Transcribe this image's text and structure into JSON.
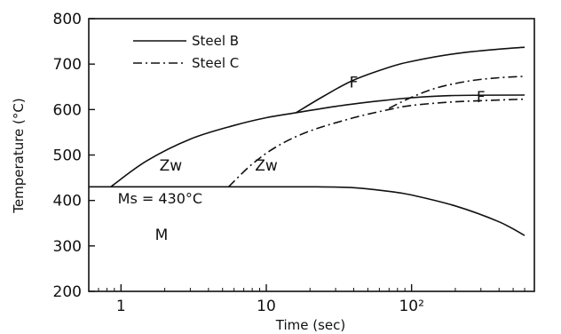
{
  "chart_data": {
    "type": "line",
    "xlabel": "Time (sec)",
    "ylabel": "Temperature (°C)",
    "xscale": "log",
    "xlim": [
      0.6,
      700
    ],
    "ylim": [
      200,
      800
    ],
    "grid": false,
    "x_ticks": [
      {
        "value": 1,
        "label": "1"
      },
      {
        "value": 10,
        "label": "10"
      },
      {
        "value": 100,
        "label": "10²"
      }
    ],
    "y_ticks": [
      200,
      300,
      400,
      500,
      600,
      700,
      800
    ],
    "legend": {
      "placement": "top-left",
      "entries": [
        {
          "name": "Steel B",
          "style": "solid"
        },
        {
          "name": "Steel C",
          "style": "dash-dot"
        }
      ]
    },
    "series": [
      {
        "name": "Steel B",
        "style": "solid",
        "part": "Zw-start",
        "points": [
          [
            0.85,
            430
          ],
          [
            1.5,
            487
          ],
          [
            3,
            535
          ],
          [
            6,
            565
          ],
          [
            10,
            582
          ],
          [
            16,
            593
          ],
          [
            30,
            607
          ],
          [
            60,
            619
          ],
          [
            100,
            626
          ],
          [
            200,
            631
          ],
          [
            600,
            632
          ]
        ]
      },
      {
        "name": "Steel B",
        "style": "solid",
        "part": "F-start",
        "points": [
          [
            16,
            593
          ],
          [
            25,
            630
          ],
          [
            40,
            665
          ],
          [
            70,
            693
          ],
          [
            100,
            706
          ],
          [
            200,
            723
          ],
          [
            400,
            733
          ],
          [
            600,
            737
          ]
        ]
      },
      {
        "name": "Steel B",
        "style": "solid",
        "part": "M-start",
        "points": [
          [
            0.6,
            430
          ],
          [
            5,
            430
          ],
          [
            20,
            430
          ],
          [
            40,
            428
          ],
          [
            70,
            420
          ],
          [
            100,
            412
          ],
          [
            200,
            388
          ],
          [
            400,
            353
          ],
          [
            600,
            323
          ]
        ]
      },
      {
        "name": "Steel C",
        "style": "dash-dot",
        "part": "Zw-start",
        "points": [
          [
            5.5,
            430
          ],
          [
            8,
            480
          ],
          [
            12,
            520
          ],
          [
            20,
            553
          ],
          [
            40,
            582
          ],
          [
            70,
            600
          ],
          [
            100,
            609
          ],
          [
            200,
            617
          ],
          [
            600,
            623
          ]
        ]
      },
      {
        "name": "Steel C",
        "style": "dash-dot",
        "part": "F-start",
        "points": [
          [
            70,
            603
          ],
          [
            100,
            627
          ],
          [
            150,
            648
          ],
          [
            250,
            663
          ],
          [
            400,
            670
          ],
          [
            600,
            673
          ]
        ]
      }
    ],
    "annotations": [
      {
        "text": "F",
        "x": 40,
        "y": 660
      },
      {
        "text": "F",
        "x": 300,
        "y": 628
      },
      {
        "text": "Zw",
        "x": 2.2,
        "y": 478
      },
      {
        "text": "Zw",
        "x": 10,
        "y": 478
      },
      {
        "text": "Ms = 430°C",
        "x": 0.95,
        "y": 405
      },
      {
        "text": "M",
        "x": 1.9,
        "y": 325
      }
    ]
  }
}
